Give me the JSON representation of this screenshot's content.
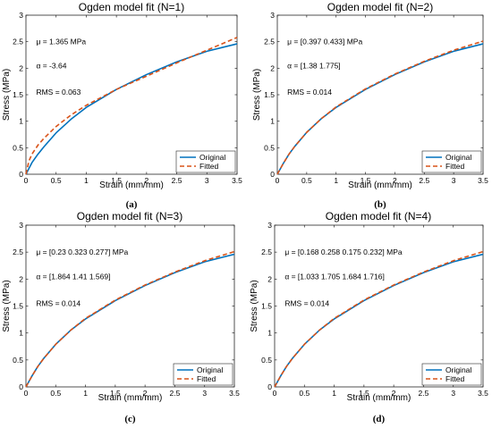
{
  "colors": {
    "original": "#0072BD",
    "fitted": "#D95319"
  },
  "chart_data": [
    {
      "type": "line",
      "title": "Ogden model fit (N=1)",
      "xlabel": "Strain (mm/mm)",
      "ylabel": "Stress (MPa)",
      "xlim": [
        0,
        3.5
      ],
      "ylim": [
        0,
        3
      ],
      "xticks": [
        "0",
        "0.5",
        "1",
        "1.5",
        "2",
        "2.5",
        "3",
        "3.5"
      ],
      "yticks": [
        "0",
        "0.5",
        "1",
        "1.5",
        "2",
        "2.5",
        "3"
      ],
      "annotations": [
        "μ = 1.365 MPa",
        "α = -3.64",
        "RMS = 0.063"
      ],
      "legend": "bottom-right",
      "panel_label": "(a)",
      "series": [
        {
          "name": "Original",
          "style": "solid",
          "x": [
            0,
            0.1,
            0.2,
            0.3,
            0.5,
            0.75,
            1.0,
            1.5,
            2.0,
            2.5,
            3.0,
            3.5
          ],
          "y": [
            0,
            0.22,
            0.38,
            0.52,
            0.78,
            1.04,
            1.26,
            1.6,
            1.88,
            2.12,
            2.32,
            2.46
          ]
        },
        {
          "name": "Fitted",
          "style": "dashed",
          "x": [
            0,
            0.05,
            0.1,
            0.2,
            0.3,
            0.5,
            0.75,
            1.0,
            1.5,
            2.0,
            2.5,
            3.0,
            3.5
          ],
          "y": [
            0,
            0.25,
            0.38,
            0.55,
            0.68,
            0.9,
            1.12,
            1.3,
            1.6,
            1.85,
            2.1,
            2.34,
            2.58
          ]
        }
      ]
    },
    {
      "type": "line",
      "title": "Ogden model fit (N=2)",
      "xlabel": "Strain (mm/mm)",
      "ylabel": "Stress (MPa)",
      "xlim": [
        0,
        3.5
      ],
      "ylim": [
        0,
        3
      ],
      "xticks": [
        "0",
        "0.5",
        "1",
        "1.5",
        "2",
        "2.5",
        "3",
        "3.5"
      ],
      "yticks": [
        "0",
        "0.5",
        "1",
        "1.5",
        "2",
        "2.5",
        "3"
      ],
      "annotations": [
        "μ = [0.397 0.433] MPa",
        "α = [1.38 1.775]",
        "RMS = 0.014"
      ],
      "legend": "bottom-right",
      "panel_label": "(b)",
      "series": [
        {
          "name": "Original",
          "style": "solid",
          "x": [
            0,
            0.1,
            0.2,
            0.3,
            0.5,
            0.75,
            1.0,
            1.5,
            2.0,
            2.5,
            3.0,
            3.5
          ],
          "y": [
            0,
            0.2,
            0.38,
            0.53,
            0.79,
            1.05,
            1.26,
            1.6,
            1.88,
            2.12,
            2.32,
            2.46
          ]
        },
        {
          "name": "Fitted",
          "style": "dashed",
          "x": [
            0,
            0.1,
            0.2,
            0.3,
            0.5,
            0.75,
            1.0,
            1.5,
            2.0,
            2.5,
            3.0,
            3.5
          ],
          "y": [
            0,
            0.2,
            0.38,
            0.53,
            0.79,
            1.05,
            1.27,
            1.61,
            1.89,
            2.13,
            2.34,
            2.51
          ]
        }
      ]
    },
    {
      "type": "line",
      "title": "Ogden model fit (N=3)",
      "xlabel": "Strain (mm/mm)",
      "ylabel": "Stress (MPa)",
      "xlim": [
        0,
        3.5
      ],
      "ylim": [
        0,
        3
      ],
      "xticks": [
        "0",
        "0.5",
        "1",
        "1.5",
        "2",
        "2.5",
        "3",
        "3.5"
      ],
      "yticks": [
        "0",
        "0.5",
        "1",
        "1.5",
        "2",
        "2.5",
        "3"
      ],
      "annotations": [
        "μ = [0.23 0.323 0.277] MPa",
        "α = [1.864 1.41 1.569]",
        "RMS = 0.014"
      ],
      "legend": "bottom-right",
      "panel_label": "(c)",
      "series": [
        {
          "name": "Original",
          "style": "solid",
          "x": [
            0,
            0.1,
            0.2,
            0.3,
            0.5,
            0.75,
            1.0,
            1.5,
            2.0,
            2.5,
            3.0,
            3.5
          ],
          "y": [
            0,
            0.2,
            0.38,
            0.53,
            0.79,
            1.05,
            1.26,
            1.6,
            1.88,
            2.12,
            2.32,
            2.46
          ]
        },
        {
          "name": "Fitted",
          "style": "dashed",
          "x": [
            0,
            0.1,
            0.2,
            0.3,
            0.5,
            0.75,
            1.0,
            1.5,
            2.0,
            2.5,
            3.0,
            3.5
          ],
          "y": [
            0,
            0.2,
            0.38,
            0.53,
            0.79,
            1.05,
            1.27,
            1.61,
            1.89,
            2.13,
            2.34,
            2.51
          ]
        }
      ]
    },
    {
      "type": "line",
      "title": "Ogden model fit (N=4)",
      "xlabel": "Strain (mm/mm)",
      "ylabel": "Stress (MPa)",
      "xlim": [
        0,
        3.5
      ],
      "ylim": [
        0,
        3
      ],
      "xticks": [
        "0",
        "0.5",
        "1",
        "1.5",
        "2",
        "2.5",
        "3",
        "3.5"
      ],
      "yticks": [
        "0",
        "0.5",
        "1",
        "1.5",
        "2",
        "2.5",
        "3"
      ],
      "annotations": [
        "μ = [0.168 0.258 0.175 0.232] MPa",
        "α = [1.033 1.705 1.684 1.716]",
        "RMS = 0.014"
      ],
      "legend": "bottom-right",
      "panel_label": "(d)",
      "series": [
        {
          "name": "Original",
          "style": "solid",
          "x": [
            0,
            0.1,
            0.2,
            0.3,
            0.5,
            0.75,
            1.0,
            1.5,
            2.0,
            2.5,
            3.0,
            3.5
          ],
          "y": [
            0,
            0.2,
            0.38,
            0.53,
            0.79,
            1.05,
            1.26,
            1.6,
            1.88,
            2.12,
            2.32,
            2.46
          ]
        },
        {
          "name": "Fitted",
          "style": "dashed",
          "x": [
            0,
            0.1,
            0.2,
            0.3,
            0.5,
            0.75,
            1.0,
            1.5,
            2.0,
            2.5,
            3.0,
            3.5
          ],
          "y": [
            0,
            0.2,
            0.38,
            0.53,
            0.79,
            1.05,
            1.27,
            1.61,
            1.89,
            2.13,
            2.34,
            2.51
          ]
        }
      ]
    }
  ]
}
